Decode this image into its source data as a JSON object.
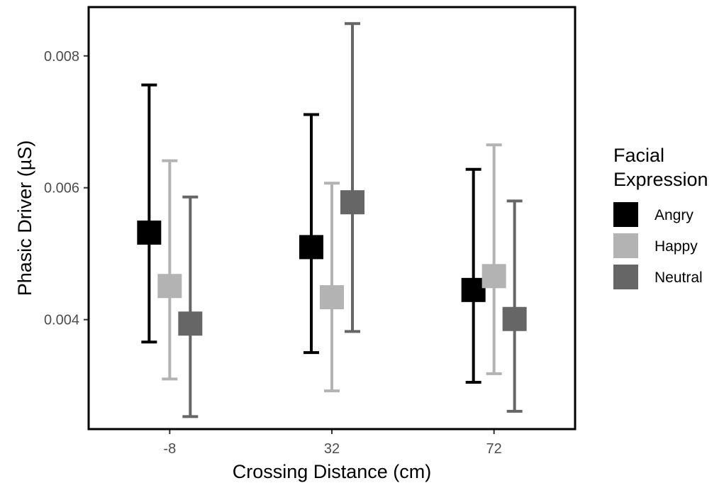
{
  "chart_data": {
    "type": "scatter",
    "title": "",
    "xlabel": "Crossing Distance (cm)",
    "ylabel": "Phasic Driver (µS)",
    "categories": [
      "-8",
      "32",
      "72"
    ],
    "ylim": [
      0.00234,
      0.00874
    ],
    "yticks": [
      0.004,
      0.006,
      0.008
    ],
    "ytick_labels": [
      "0.004",
      "0.006",
      "0.008"
    ],
    "grid": false,
    "legend": {
      "title_lines": [
        "Facial",
        "Expression"
      ],
      "placement": "right"
    },
    "series": [
      {
        "name": "Angry",
        "color": "#000000",
        "values": [
          0.00532,
          0.0051,
          0.00445
        ],
        "lower": [
          0.00366,
          0.0035,
          0.00305
        ],
        "upper": [
          0.00756,
          0.00711,
          0.00628
        ]
      },
      {
        "name": "Happy",
        "color": "#b3b3b3",
        "values": [
          0.00451,
          0.00434,
          0.00466
        ],
        "lower": [
          0.0031,
          0.00292,
          0.00318
        ],
        "upper": [
          0.00641,
          0.00607,
          0.00665
        ]
      },
      {
        "name": "Neutral",
        "color": "#666666",
        "values": [
          0.00394,
          0.00578,
          0.00401
        ],
        "lower": [
          0.00253,
          0.00382,
          0.00261
        ],
        "upper": [
          0.00586,
          0.00849,
          0.0058
        ]
      }
    ]
  }
}
